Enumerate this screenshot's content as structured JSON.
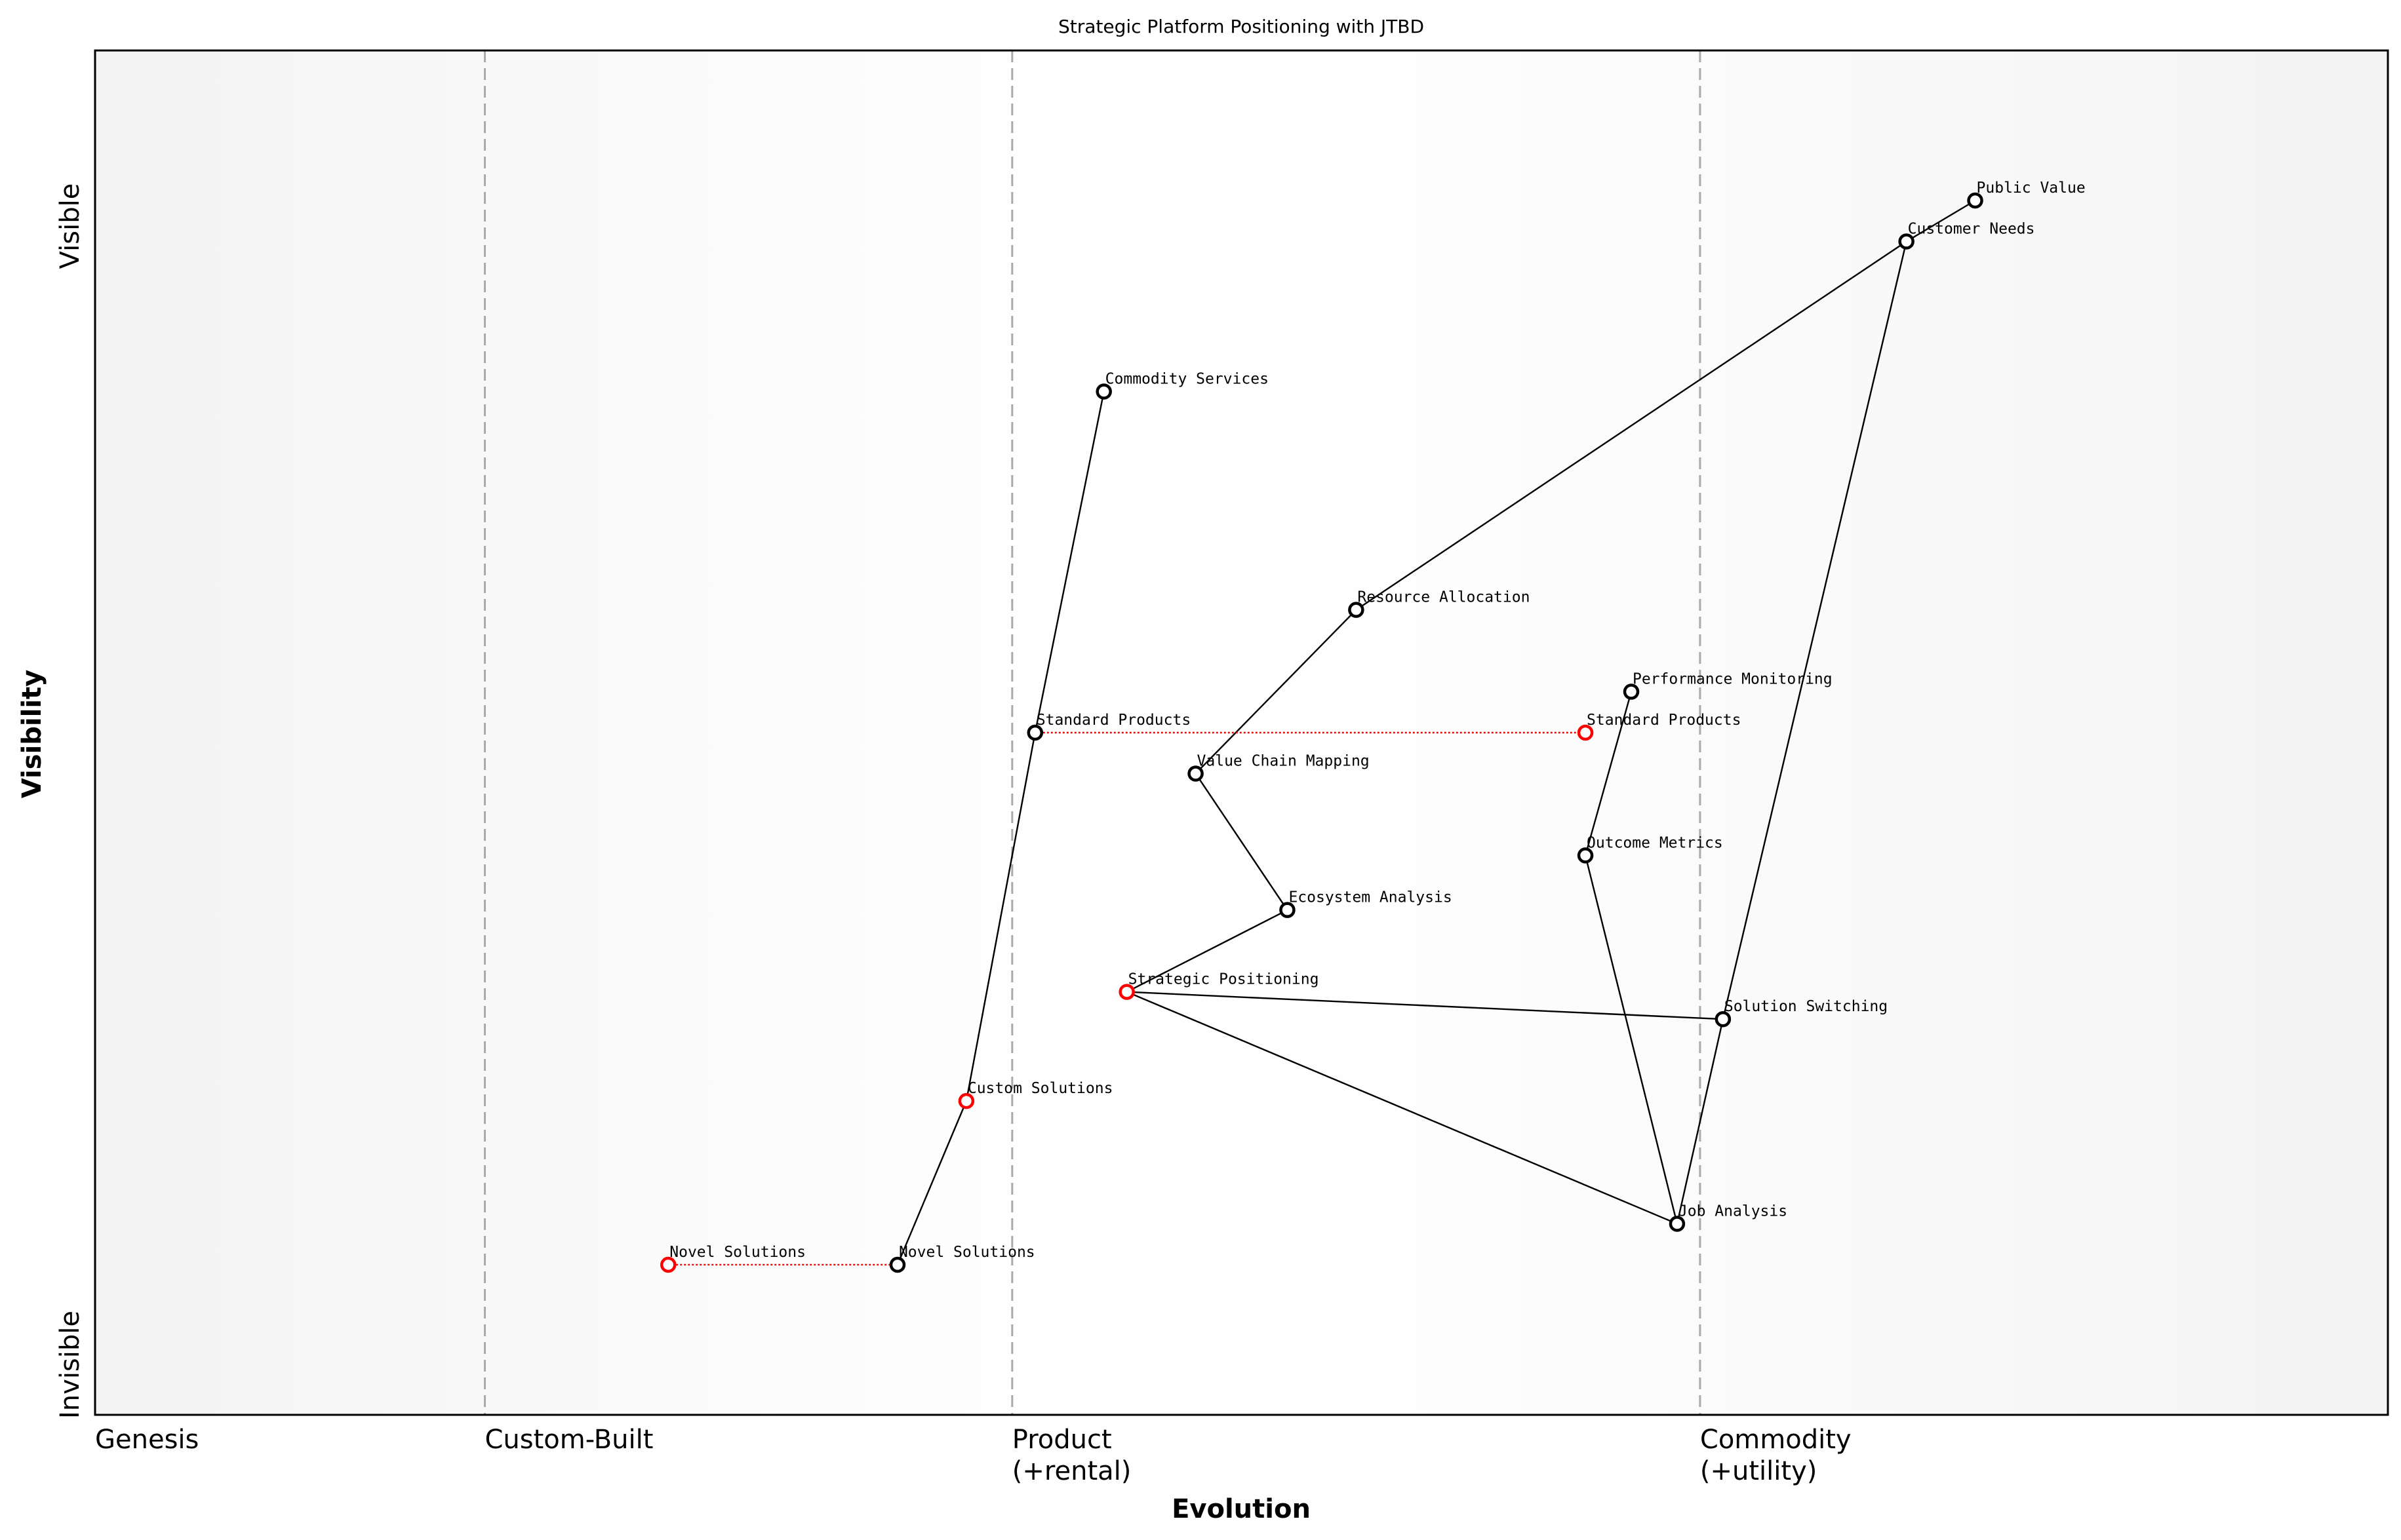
{
  "chart_data": {
    "type": "wardley-map",
    "title": "Strategic Platform Positioning with JTBD",
    "xlabel": "Evolution",
    "ylabel": "Visibility",
    "xlim": [
      0,
      1
    ],
    "ylim": [
      0,
      1
    ],
    "y_tick_labels": {
      "top": "Visible",
      "bottom": "Invisible"
    },
    "stages": [
      {
        "label": "Genesis",
        "x": 0.0
      },
      {
        "label": "Custom-Built",
        "x": 0.17
      },
      {
        "label": "Product\n(+rental)",
        "x": 0.4
      },
      {
        "label": "Commodity\n(+utility)",
        "x": 0.7
      }
    ],
    "colors": {
      "component": "#000000",
      "highlight": "#ff0000",
      "stage_line": "#aaaaaa",
      "edge_bg": "#f4f4f4"
    },
    "components": [
      {
        "id": "public_value",
        "label": "Public Value",
        "evolution": 0.82,
        "visibility": 0.89,
        "color": "#000000"
      },
      {
        "id": "customer_needs",
        "label": "Customer Needs",
        "evolution": 0.79,
        "visibility": 0.86,
        "color": "#000000"
      },
      {
        "id": "commodity_services",
        "label": "Commodity Services",
        "evolution": 0.44,
        "visibility": 0.75,
        "color": "#000000"
      },
      {
        "id": "resource_allocation",
        "label": "Resource Allocation",
        "evolution": 0.55,
        "visibility": 0.59,
        "color": "#000000"
      },
      {
        "id": "performance_monitoring",
        "label": "Performance Monitoring",
        "evolution": 0.67,
        "visibility": 0.53,
        "color": "#000000"
      },
      {
        "id": "standard_products",
        "label": "Standard Products",
        "evolution": 0.41,
        "visibility": 0.5,
        "color": "#000000"
      },
      {
        "id": "standard_products_future",
        "label": "Standard Products",
        "evolution": 0.65,
        "visibility": 0.5,
        "color": "#ff0000"
      },
      {
        "id": "value_chain_mapping",
        "label": "Value Chain Mapping",
        "evolution": 0.48,
        "visibility": 0.47,
        "color": "#000000"
      },
      {
        "id": "outcome_metrics",
        "label": "Outcome Metrics",
        "evolution": 0.65,
        "visibility": 0.41,
        "color": "#000000"
      },
      {
        "id": "ecosystem_analysis",
        "label": "Ecosystem Analysis",
        "evolution": 0.52,
        "visibility": 0.37,
        "color": "#000000"
      },
      {
        "id": "strategic_positioning",
        "label": "Strategic Positioning",
        "evolution": 0.45,
        "visibility": 0.31,
        "color": "#ff0000"
      },
      {
        "id": "solution_switching",
        "label": "Solution Switching",
        "evolution": 0.71,
        "visibility": 0.29,
        "color": "#000000"
      },
      {
        "id": "custom_solutions",
        "label": "Custom Solutions",
        "evolution": 0.38,
        "visibility": 0.23,
        "color": "#ff0000"
      },
      {
        "id": "job_analysis",
        "label": "Job Analysis",
        "evolution": 0.69,
        "visibility": 0.14,
        "color": "#000000"
      },
      {
        "id": "novel_solutions",
        "label": "Novel Solutions",
        "evolution": 0.35,
        "visibility": 0.11,
        "color": "#000000"
      },
      {
        "id": "novel_solutions_past",
        "label": "Novel Solutions",
        "evolution": 0.25,
        "visibility": 0.11,
        "color": "#ff0000"
      }
    ],
    "links": [
      [
        "public_value",
        "customer_needs"
      ],
      [
        "customer_needs",
        "resource_allocation"
      ],
      [
        "customer_needs",
        "solution_switching"
      ],
      [
        "resource_allocation",
        "value_chain_mapping"
      ],
      [
        "value_chain_mapping",
        "ecosystem_analysis"
      ],
      [
        "ecosystem_analysis",
        "strategic_positioning"
      ],
      [
        "strategic_positioning",
        "solution_switching"
      ],
      [
        "strategic_positioning",
        "job_analysis"
      ],
      [
        "solution_switching",
        "job_analysis"
      ],
      [
        "job_analysis",
        "outcome_metrics"
      ],
      [
        "outcome_metrics",
        "performance_monitoring"
      ],
      [
        "commodity_services",
        "standard_products"
      ],
      [
        "standard_products",
        "custom_solutions"
      ],
      [
        "custom_solutions",
        "novel_solutions"
      ]
    ],
    "evolution_links": [
      [
        "standard_products",
        "standard_products_future"
      ],
      [
        "novel_solutions_past",
        "novel_solutions"
      ]
    ]
  }
}
